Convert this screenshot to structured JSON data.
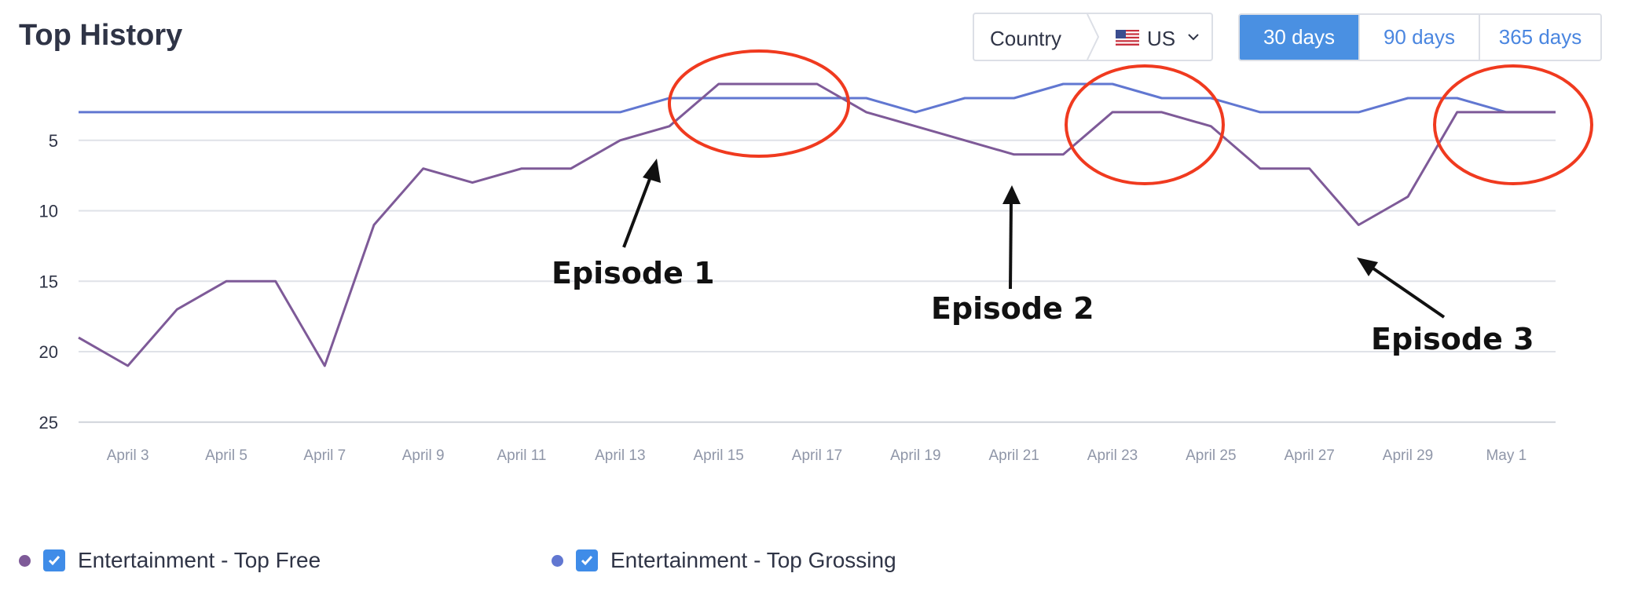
{
  "header": {
    "title": "Top History"
  },
  "country": {
    "label": "Country",
    "value": "US"
  },
  "ranges": [
    {
      "label": "30 days",
      "active": true
    },
    {
      "label": "90 days",
      "active": false
    },
    {
      "label": "365 days",
      "active": false
    }
  ],
  "annotations": [
    "Episode 1",
    "Episode 2",
    "Episode 3"
  ],
  "chart_data": {
    "type": "line",
    "y_inverted": true,
    "ylim": [
      25,
      1
    ],
    "yticks": [
      5,
      10,
      15,
      20,
      25
    ],
    "x_labels": [
      "April 3",
      "April 5",
      "April 7",
      "April 9",
      "April 11",
      "April 13",
      "April 15",
      "April 17",
      "April 19",
      "April 21",
      "April 23",
      "April 25",
      "April 27",
      "April 29",
      "May 1"
    ],
    "grid": true,
    "legend_position": "bottom-left",
    "series": [
      {
        "name": "Entertainment - Top Free",
        "color": "#7e5a98",
        "values": [
          19,
          21,
          17,
          15,
          15,
          21,
          11,
          7,
          8,
          7,
          7,
          5,
          4,
          1,
          1,
          1,
          3,
          4,
          5,
          6,
          6,
          3,
          3,
          4,
          7,
          7,
          11,
          9,
          3,
          3,
          3
        ]
      },
      {
        "name": "Entertainment - Top Grossing",
        "color": "#6177d1",
        "values": [
          3,
          3,
          3,
          3,
          3,
          3,
          3,
          3,
          3,
          3,
          3,
          3,
          2,
          2,
          2,
          2,
          2,
          3,
          2,
          2,
          1,
          1,
          2,
          2,
          3,
          3,
          3,
          2,
          2,
          3,
          3
        ]
      }
    ]
  }
}
